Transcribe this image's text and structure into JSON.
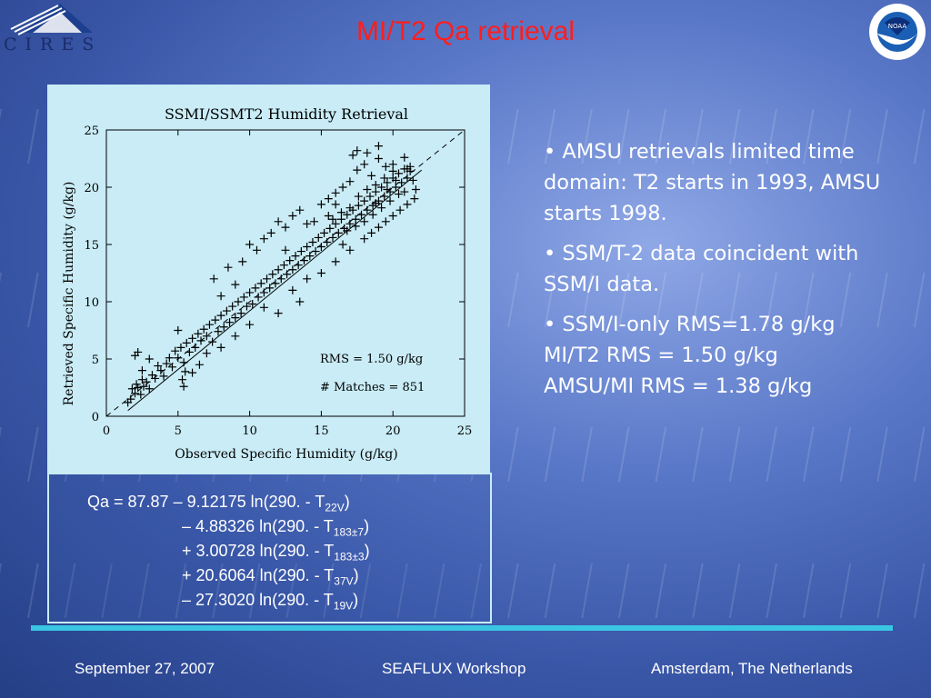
{
  "title": "MI/T2 Qa retrieval",
  "logos": {
    "left_text": "CIRES",
    "right_text": "NOAA"
  },
  "chart_data": {
    "type": "scatter",
    "title": "SSMI/SSMT2 Humidity Retrieval",
    "xlabel": "Observed Specific Humidity (g/kg)",
    "ylabel": "Retrieved Specific Humidity (g/kg)",
    "xlim": [
      0,
      25
    ],
    "ylim": [
      0,
      25
    ],
    "xticks": [
      0,
      5,
      10,
      15,
      20,
      25
    ],
    "yticks": [
      0,
      5,
      10,
      15,
      20,
      25
    ],
    "annotations": [
      "RMS =  1.50 g/kg",
      "# Matches =  851"
    ],
    "reference_line": [
      [
        0,
        0
      ],
      [
        25,
        25
      ]
    ],
    "fit_line": [
      [
        1.5,
        0.5
      ],
      [
        22,
        21.5
      ]
    ],
    "marker": "+",
    "points": [
      [
        1.5,
        1.2
      ],
      [
        1.7,
        1.5
      ],
      [
        1.8,
        2.4
      ],
      [
        2.0,
        2.0
      ],
      [
        2.1,
        2.8
      ],
      [
        2.2,
        2.5
      ],
      [
        2.4,
        1.9
      ],
      [
        2.5,
        3.2
      ],
      [
        2.6,
        2.6
      ],
      [
        2.8,
        3.0
      ],
      [
        2.0,
        5.3
      ],
      [
        2.2,
        5.6
      ],
      [
        3.0,
        2.4
      ],
      [
        3.2,
        3.6
      ],
      [
        3.4,
        3.3
      ],
      [
        3.6,
        4.4
      ],
      [
        3.8,
        4.0
      ],
      [
        4.0,
        3.5
      ],
      [
        4.2,
        4.6
      ],
      [
        4.4,
        5.1
      ],
      [
        4.6,
        4.3
      ],
      [
        4.8,
        5.7
      ],
      [
        5.0,
        5.1
      ],
      [
        5.2,
        6.0
      ],
      [
        5.4,
        4.7
      ],
      [
        5.6,
        6.4
      ],
      [
        5.8,
        5.6
      ],
      [
        6.0,
        6.8
      ],
      [
        6.2,
        6.0
      ],
      [
        6.4,
        7.2
      ],
      [
        5.0,
        7.5
      ],
      [
        5.4,
        2.6
      ],
      [
        5.3,
        3.2
      ],
      [
        5.5,
        3.9
      ],
      [
        6.6,
        6.6
      ],
      [
        6.8,
        7.6
      ],
      [
        7.0,
        7.0
      ],
      [
        7.2,
        8.0
      ],
      [
        7.4,
        6.5
      ],
      [
        7.6,
        8.4
      ],
      [
        7.8,
        7.4
      ],
      [
        8.0,
        8.8
      ],
      [
        8.2,
        7.8
      ],
      [
        8.4,
        9.2
      ],
      [
        8.6,
        8.2
      ],
      [
        8.8,
        9.6
      ],
      [
        9.0,
        8.6
      ],
      [
        9.2,
        10.0
      ],
      [
        9.4,
        9.0
      ],
      [
        9.6,
        10.4
      ],
      [
        9.8,
        9.6
      ],
      [
        10.0,
        10.8
      ],
      [
        10.2,
        9.8
      ],
      [
        10.4,
        11.2
      ],
      [
        10.6,
        10.4
      ],
      [
        10.8,
        11.6
      ],
      [
        11.0,
        10.8
      ],
      [
        11.2,
        12.0
      ],
      [
        11.4,
        11.2
      ],
      [
        11.6,
        12.4
      ],
      [
        11.8,
        11.6
      ],
      [
        12.0,
        12.8
      ],
      [
        12.2,
        12.0
      ],
      [
        12.4,
        13.2
      ],
      [
        12.6,
        12.4
      ],
      [
        12.8,
        13.6
      ],
      [
        13.0,
        12.8
      ],
      [
        13.2,
        14.0
      ],
      [
        13.4,
        13.2
      ],
      [
        13.6,
        14.4
      ],
      [
        10.5,
        14.5
      ],
      [
        11.0,
        15.5
      ],
      [
        11.5,
        16.0
      ],
      [
        12.0,
        17.0
      ],
      [
        12.5,
        16.5
      ],
      [
        13.0,
        17.5
      ],
      [
        13.5,
        18.0
      ],
      [
        14.0,
        16.8
      ],
      [
        9.5,
        13.5
      ],
      [
        10.0,
        15.0
      ],
      [
        12.0,
        9.0
      ],
      [
        13.0,
        11.0
      ],
      [
        14.0,
        12.0
      ],
      [
        10.0,
        8.0
      ],
      [
        9.0,
        7.0
      ],
      [
        11.0,
        9.5
      ],
      [
        8.0,
        10.5
      ],
      [
        7.5,
        12.0
      ],
      [
        8.5,
        13.0
      ],
      [
        9.0,
        11.5
      ],
      [
        13.8,
        13.6
      ],
      [
        14.0,
        14.8
      ],
      [
        14.2,
        14.0
      ],
      [
        14.4,
        15.2
      ],
      [
        14.6,
        14.4
      ],
      [
        14.8,
        15.6
      ],
      [
        15.0,
        14.8
      ],
      [
        15.2,
        16.0
      ],
      [
        15.4,
        15.2
      ],
      [
        15.6,
        16.4
      ],
      [
        15.8,
        15.6
      ],
      [
        16.0,
        16.8
      ],
      [
        16.2,
        16.0
      ],
      [
        16.4,
        17.2
      ],
      [
        16.6,
        16.4
      ],
      [
        16.8,
        17.6
      ],
      [
        17.0,
        16.8
      ],
      [
        17.2,
        18.0
      ],
      [
        17.4,
        17.2
      ],
      [
        17.6,
        18.4
      ],
      [
        17.8,
        17.6
      ],
      [
        18.0,
        18.8
      ],
      [
        18.2,
        18.0
      ],
      [
        18.4,
        19.2
      ],
      [
        18.6,
        18.4
      ],
      [
        18.8,
        19.6
      ],
      [
        19.0,
        18.8
      ],
      [
        19.2,
        20.0
      ],
      [
        19.4,
        19.2
      ],
      [
        19.6,
        20.4
      ],
      [
        19.8,
        19.6
      ],
      [
        20.0,
        20.8
      ],
      [
        20.2,
        20.0
      ],
      [
        20.4,
        21.2
      ],
      [
        20.6,
        20.4
      ],
      [
        20.8,
        21.6
      ],
      [
        21.0,
        20.8
      ],
      [
        21.2,
        21.4
      ],
      [
        21.4,
        20.6
      ],
      [
        21.6,
        19.8
      ],
      [
        17.0,
        20.5
      ],
      [
        17.5,
        21.5
      ],
      [
        18.0,
        22.0
      ],
      [
        18.5,
        21.0
      ],
      [
        19.0,
        22.5
      ],
      [
        19.5,
        21.8
      ],
      [
        16.5,
        20.0
      ],
      [
        16.0,
        19.5
      ],
      [
        15.5,
        19.0
      ],
      [
        15.0,
        18.5
      ],
      [
        17.0,
        14.5
      ],
      [
        18.0,
        15.5
      ],
      [
        19.0,
        16.5
      ],
      [
        20.0,
        17.5
      ],
      [
        21.0,
        18.5
      ],
      [
        18.5,
        16.0
      ],
      [
        19.5,
        17.0
      ],
      [
        20.5,
        18.0
      ],
      [
        16.5,
        15.0
      ],
      [
        21.5,
        19.0
      ],
      [
        17.2,
        22.8
      ],
      [
        17.5,
        23.2
      ],
      [
        18.2,
        23.0
      ],
      [
        19.0,
        23.6
      ],
      [
        20.0,
        22.0
      ],
      [
        20.8,
        22.6
      ],
      [
        21.2,
        21.8
      ],
      [
        14.5,
        17.0
      ],
      [
        15.5,
        17.5
      ],
      [
        16.0,
        18.5
      ],
      [
        18.0,
        17.0
      ],
      [
        18.6,
        17.6
      ],
      [
        19.2,
        18.2
      ],
      [
        19.8,
        18.8
      ],
      [
        20.4,
        19.4
      ],
      [
        17.4,
        16.6
      ],
      [
        16.8,
        16.2
      ],
      [
        18.8,
        20.2
      ],
      [
        19.4,
        20.8
      ],
      [
        20.0,
        21.4
      ],
      [
        17.6,
        19.2
      ],
      [
        18.2,
        19.8
      ],
      [
        18.8,
        18.6
      ],
      [
        19.6,
        19.8
      ],
      [
        20.2,
        20.6
      ],
      [
        20.8,
        19.6
      ],
      [
        21.0,
        21.6
      ],
      [
        17.0,
        18.2
      ],
      [
        16.4,
        17.8
      ],
      [
        15.8,
        17.2
      ],
      [
        2.5,
        4.0
      ],
      [
        3.0,
        5.0
      ],
      [
        6.5,
        4.5
      ],
      [
        6.0,
        3.8
      ],
      [
        7.0,
        5.5
      ],
      [
        8.0,
        6.0
      ],
      [
        13.5,
        10.0
      ],
      [
        15.0,
        12.5
      ],
      [
        16.0,
        13.5
      ],
      [
        12.5,
        14.5
      ]
    ]
  },
  "formula": {
    "l1_a": "Qa = 87.87 – 9.12175 ln(290. - T",
    "l1_sub": "22V",
    "l1_b": ")",
    "l2_a": "– 4.88326 ln(290. - T",
    "l2_sub": "183±7",
    "l2_b": ")",
    "l3_a": "+ 3.00728 ln(290. - T",
    "l3_sub": "183±3",
    "l3_b": ")",
    "l4_a": "+ 20.6064 ln(290. - T",
    "l4_sub": "37V",
    "l4_b": ")",
    "l5_a": "– 27.3020 ln(290. - T",
    "l5_sub": "19V",
    "l5_b": ")"
  },
  "bullets": [
    "• AMSU retrievals limited time domain: T2 starts in 1993, AMSU starts 1998.",
    "• SSM/T-2 data coincident with SSM/I data.",
    "• SSM/I-only RMS=1.78 g/kg",
    "MI/T2 RMS = 1.50 g/kg",
    "AMSU/MI RMS = 1.38 g/kg"
  ],
  "footer": {
    "date": "September 27, 2007",
    "event": "SEAFLUX Workshop",
    "location": "Amsterdam, The Netherlands"
  },
  "colors": {
    "title": "#ff1e1e",
    "chart_background": "#c9ecf6",
    "rule": "#39c6e2",
    "text": "#ffffff"
  }
}
